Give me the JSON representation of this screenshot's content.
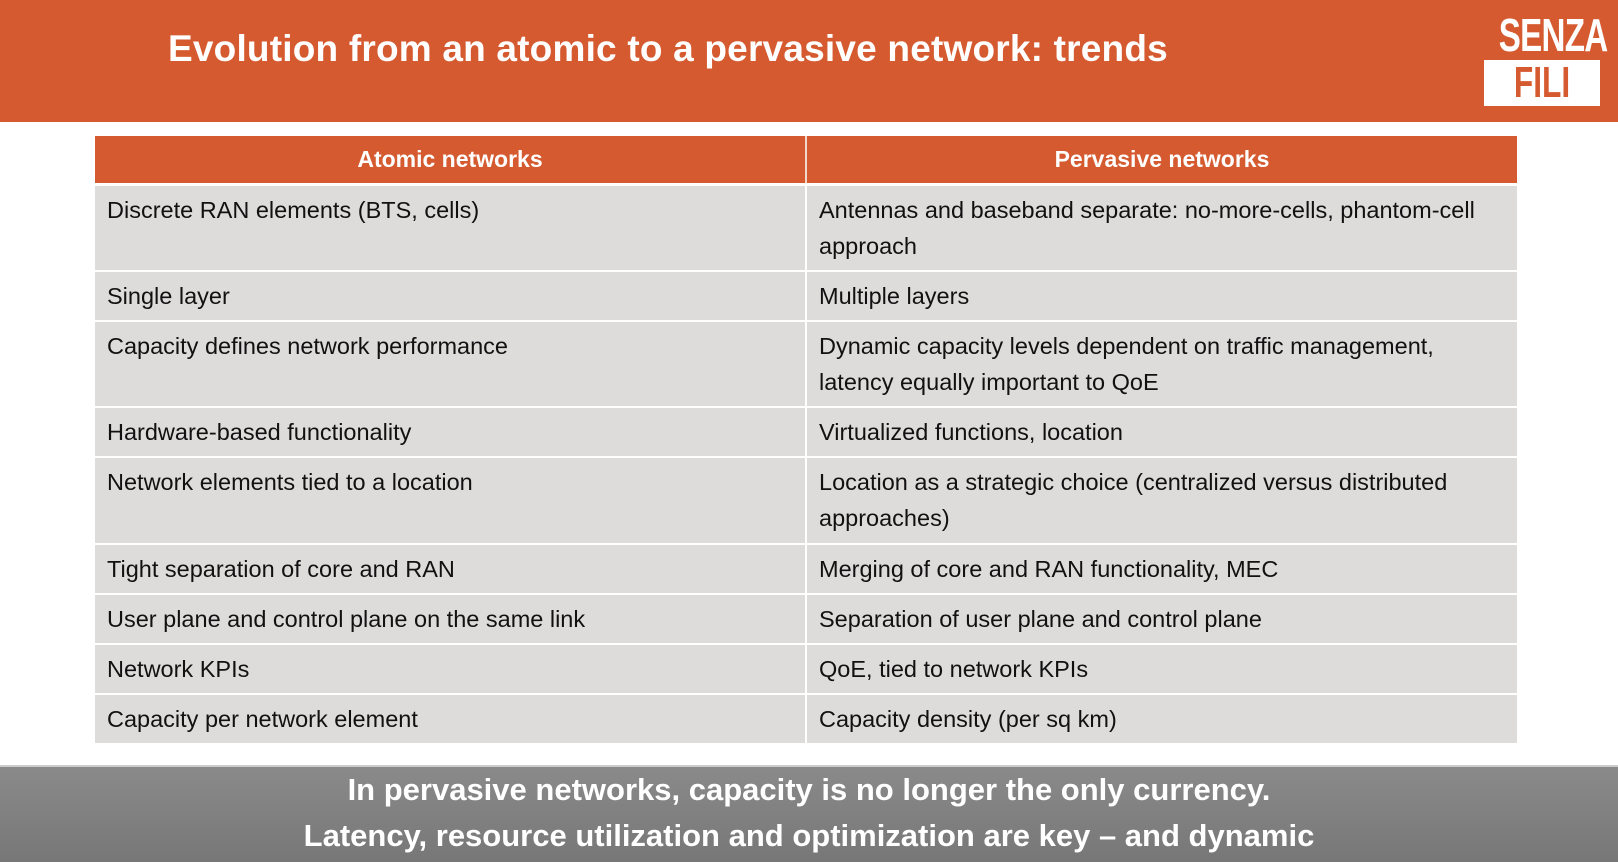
{
  "header": {
    "title": "Evolution from an atomic to a pervasive network: trends",
    "logo_text": [
      "SENZA",
      "FILI"
    ]
  },
  "colors": {
    "accent": "#d55a30",
    "row_bg": "#dedbdb",
    "footer_bg": "#808080"
  },
  "table": {
    "columns": [
      "Atomic networks",
      "Pervasive networks"
    ],
    "rows": [
      [
        "Discrete RAN elements (BTS, cells)",
        "Antennas and baseband separate: no-more-cells, phantom-cell approach"
      ],
      [
        "Single layer",
        "Multiple layers"
      ],
      [
        "Capacity defines network performance",
        "Dynamic capacity levels dependent on traffic management, latency equally important to QoE"
      ],
      [
        "Hardware-based functionality",
        "Virtualized functions, location"
      ],
      [
        "Network elements tied to a location",
        "Location as a strategic choice (centralized versus distributed approaches)"
      ],
      [
        "Tight separation of core and RAN",
        "Merging of core and RAN functionality, MEC"
      ],
      [
        "User plane and control plane on the same link",
        "Separation of user plane and control plane"
      ],
      [
        "Network KPIs",
        "QoE, tied to network KPIs"
      ],
      [
        "Capacity per network element",
        "Capacity density (per sq km)"
      ]
    ]
  },
  "footer": {
    "lines": [
      "In pervasive networks, capacity is no longer the only currency.",
      "Latency, resource utilization and optimization are key – and dynamic"
    ]
  }
}
